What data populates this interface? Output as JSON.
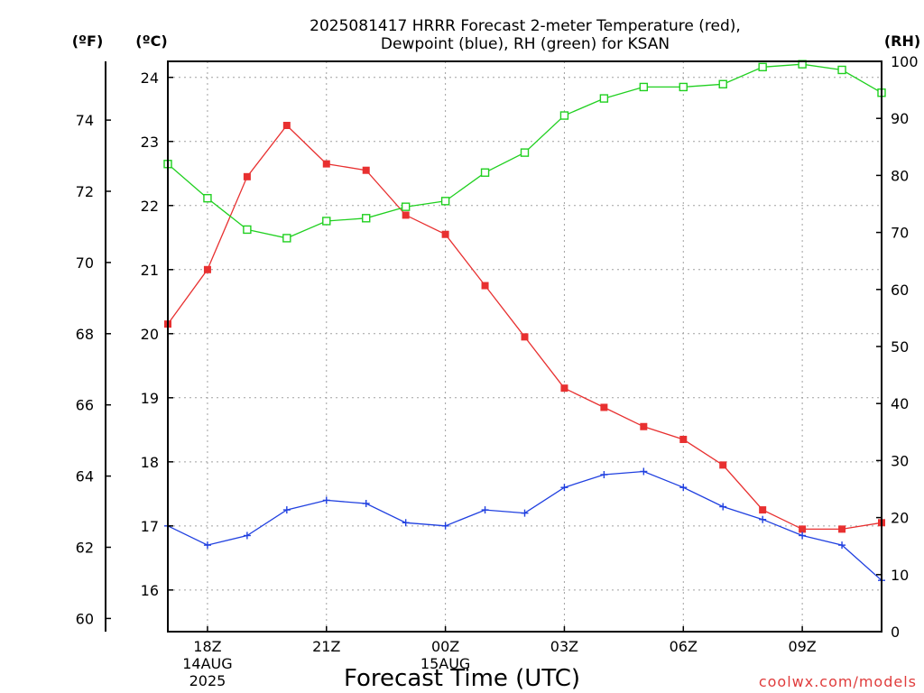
{
  "chart_data": {
    "type": "line",
    "title_line1": "2025081417 HRRR Forecast 2-meter Temperature (red),",
    "title_line2": "Dewpoint (blue), RH (green) for KSAN",
    "xlabel": "Forecast Time (UTC)",
    "credit": "coolwx.com/models",
    "units": {
      "fahrenheit": "(ºF)",
      "celsius": "(ºC)",
      "rh": "(RH)"
    },
    "x": [
      17,
      18,
      19,
      20,
      21,
      22,
      23,
      24,
      25,
      26,
      27,
      28,
      29,
      30,
      31,
      32,
      33,
      34,
      35
    ],
    "xlim": [
      17,
      35
    ],
    "x_ticks": [
      {
        "x": 18,
        "lines": [
          "18Z",
          "14AUG",
          "2025"
        ]
      },
      {
        "x": 21,
        "lines": [
          "21Z"
        ]
      },
      {
        "x": 24,
        "lines": [
          "00Z",
          "15AUG"
        ]
      },
      {
        "x": 27,
        "lines": [
          "03Z"
        ]
      },
      {
        "x": 30,
        "lines": [
          "06Z"
        ]
      },
      {
        "x": 33,
        "lines": [
          "09Z"
        ]
      }
    ],
    "grid": true,
    "y_celsius": {
      "lim": [
        15.35,
        24.25
      ],
      "ticks": [
        16,
        17,
        18,
        19,
        20,
        21,
        22,
        23,
        24
      ]
    },
    "y_fahrenheit": {
      "ticks": [
        60,
        62,
        64,
        66,
        68,
        70,
        72,
        74
      ]
    },
    "y_rh": {
      "lim": [
        0,
        100
      ],
      "ticks": [
        0,
        10,
        20,
        30,
        40,
        50,
        60,
        70,
        80,
        90,
        100
      ]
    },
    "series": [
      {
        "key": "temperature",
        "axis": "celsius",
        "color": "#e83030",
        "marker": "filled-square",
        "values": [
          20.15,
          21.0,
          22.45,
          23.25,
          22.65,
          22.55,
          21.85,
          21.55,
          20.75,
          19.95,
          19.15,
          18.85,
          18.55,
          18.35,
          17.95,
          17.25,
          16.95,
          16.95,
          17.05
        ]
      },
      {
        "key": "dewpoint",
        "axis": "celsius",
        "color": "#2040e0",
        "marker": "plus",
        "values": [
          17.0,
          16.7,
          16.85,
          17.25,
          17.4,
          17.35,
          17.05,
          17.0,
          17.25,
          17.2,
          17.6,
          17.8,
          17.85,
          17.6,
          17.3,
          17.1,
          16.85,
          16.7,
          16.15
        ]
      },
      {
        "key": "rh",
        "axis": "rh",
        "color": "#20d020",
        "marker": "open-square",
        "values": [
          82,
          76,
          70.5,
          69,
          72,
          72.5,
          74.5,
          75.5,
          80.5,
          84,
          90.5,
          93.5,
          95.5,
          95.5,
          96,
          99,
          99.5,
          98.5,
          94.5
        ]
      }
    ]
  }
}
